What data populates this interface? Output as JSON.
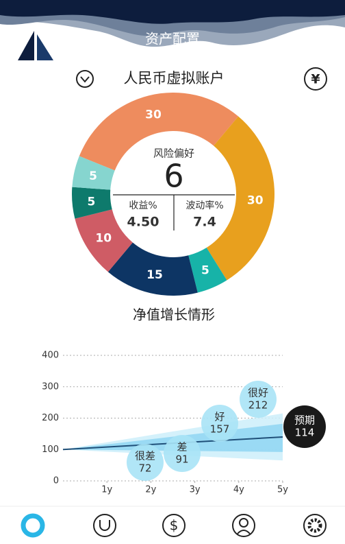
{
  "header": {
    "title": "资产配置"
  },
  "account": {
    "title": "人民币虚拟账户",
    "currency_icon": "¥"
  },
  "allocation": {
    "type": "donut",
    "values": [
      30,
      30,
      5,
      15,
      10,
      5,
      5
    ],
    "colors": [
      "#ee8c5e",
      "#e8a01e",
      "#17b3a8",
      "#0d3564",
      "#cf5c65",
      "#0e7a6c",
      "#86d5cf"
    ],
    "center": {
      "label": "风险偏好",
      "value": 6
    },
    "stats": [
      {
        "label": "收益%",
        "value": "4.50"
      },
      {
        "label": "波动率%",
        "value": 7.4
      }
    ]
  },
  "chart_data": {
    "type": "fan",
    "title": "净值增长情形",
    "x": [
      0,
      5
    ],
    "xlim": [
      0,
      5
    ],
    "xticks": [
      {
        "value": 1,
        "label": "1y"
      },
      {
        "value": 2,
        "label": "2y"
      },
      {
        "value": 3,
        "label": "3y"
      },
      {
        "value": 4,
        "label": "4y"
      },
      {
        "value": 5,
        "label": "5y"
      }
    ],
    "ylim": [
      0,
      400
    ],
    "yticks": [
      0,
      100,
      200,
      300,
      400
    ],
    "grid": true,
    "bands": [
      {
        "lower": [
          100,
          65
        ],
        "upper": [
          100,
          215
        ],
        "color": "#cdeefa"
      },
      {
        "lower": [
          100,
          92
        ],
        "upper": [
          100,
          182
        ],
        "color": "#8fd6f2"
      }
    ],
    "series": [
      {
        "color": "#1f4f78",
        "values": [
          100,
          140
        ]
      }
    ],
    "scenarios": [
      {
        "name": "很差",
        "value": 72
      },
      {
        "name": "差",
        "value": 91
      },
      {
        "name": "好",
        "value": 157
      },
      {
        "name": "很好",
        "value": 212
      },
      {
        "name": "预期",
        "value": 114
      }
    ]
  },
  "nav": {
    "dollar_icon": "$"
  }
}
